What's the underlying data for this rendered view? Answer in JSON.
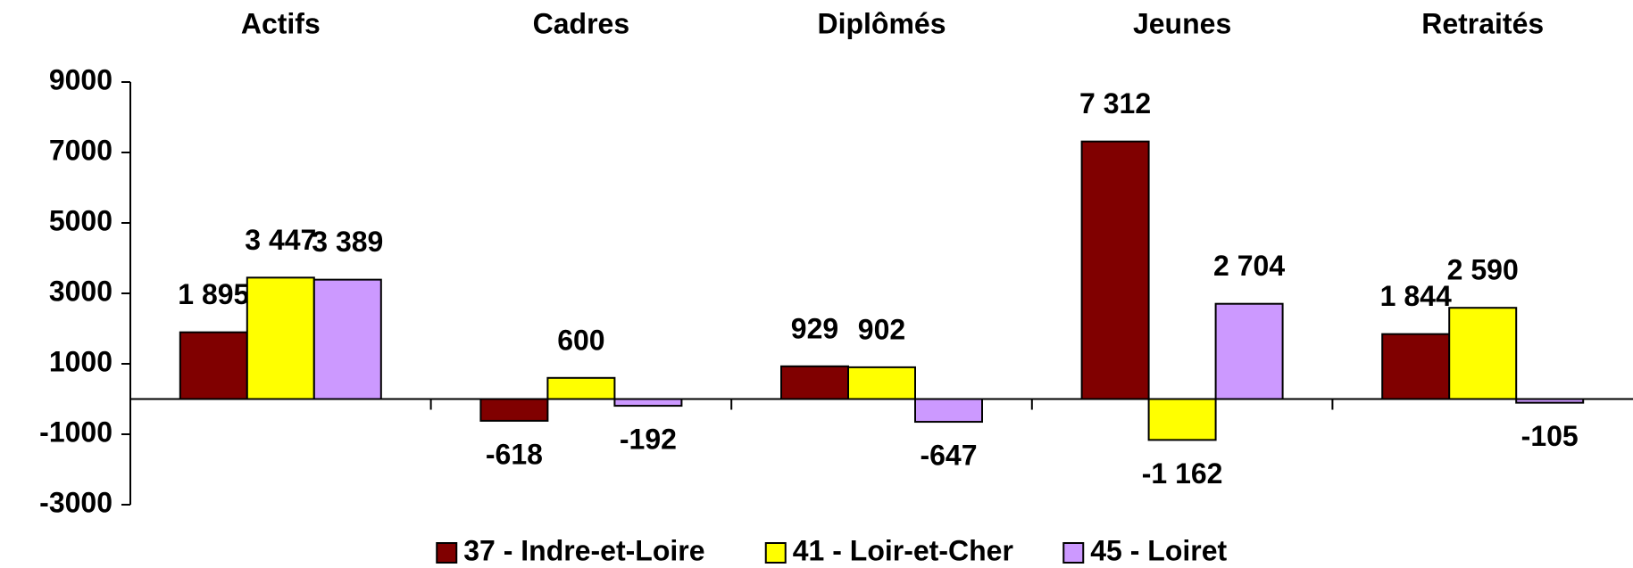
{
  "chart_data": {
    "type": "bar",
    "categories": [
      "Actifs",
      "Cadres",
      "Diplômés",
      "Jeunes",
      "Retraités"
    ],
    "series": [
      {
        "name": "37 - Indre-et-Loire",
        "color": "#800000",
        "values": [
          1895,
          -618,
          929,
          7312,
          1844
        ],
        "value_labels": [
          "1 895",
          "-618",
          "929",
          "7 312",
          "1 844"
        ]
      },
      {
        "name": "41 - Loir-et-Cher",
        "color": "#ffff00",
        "values": [
          3447,
          600,
          902,
          -1162,
          2590
        ],
        "value_labels": [
          "3 447",
          "600",
          "902",
          "-1 162",
          "2 590"
        ]
      },
      {
        "name": "45 - Loiret",
        "color": "#cc99ff",
        "values": [
          3389,
          -192,
          -647,
          2704,
          -105
        ],
        "value_labels": [
          "3 389",
          "-192",
          "-647",
          "2 704",
          "-105"
        ]
      }
    ],
    "ylim": [
      -3000,
      9000
    ],
    "yticks": [
      -3000,
      -1000,
      1000,
      3000,
      5000,
      7000,
      9000
    ],
    "legend": "bottom"
  }
}
